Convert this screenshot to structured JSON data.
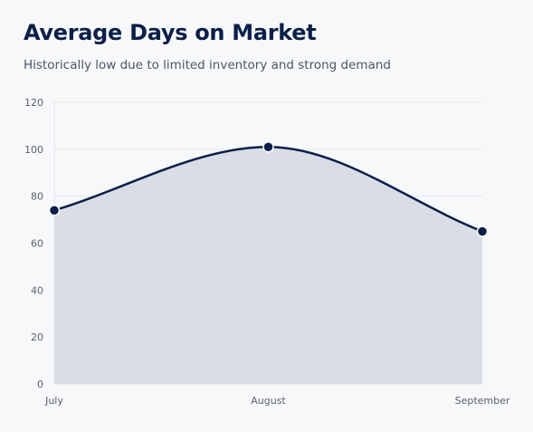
{
  "header": {
    "title": "Average Days on Market",
    "subtitle": "Historically low due to limited inventory and strong demand"
  },
  "colors": {
    "line": "#0b1f48",
    "area_fill": "#d9dde5",
    "grid": "#e3e6eb",
    "point_stroke": "#ffffff"
  },
  "chart_data": {
    "type": "area",
    "title": "Average Days on Market",
    "subtitle": "Historically low due to limited inventory and strong demand",
    "categories": [
      "July",
      "August",
      "September"
    ],
    "series": [
      {
        "values": [
          74,
          101,
          65
        ]
      }
    ],
    "ylim": [
      0,
      120
    ],
    "yticks": [
      0,
      20,
      40,
      60,
      80,
      100,
      120
    ],
    "grid": true,
    "legend": "none",
    "curve": "smooth"
  }
}
